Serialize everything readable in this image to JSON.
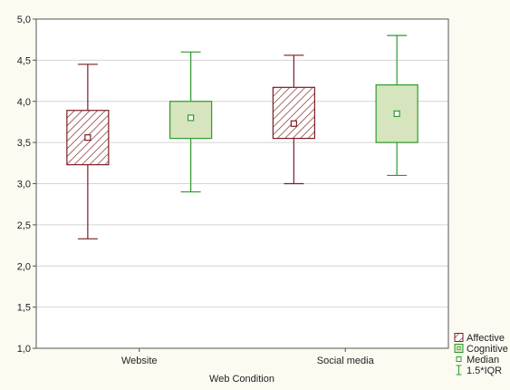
{
  "chart_data": {
    "type": "boxplot",
    "xlabel": "Web Condition",
    "ylabel": "",
    "ylim": [
      1.0,
      5.0
    ],
    "yticks": [
      "1,0",
      "1,5",
      "2,0",
      "2,5",
      "3,0",
      "3,5",
      "4,0",
      "4,5",
      "5,0"
    ],
    "grid": true,
    "legend_position": "bottom-right",
    "categories": [
      "Website",
      "Social media"
    ],
    "series": [
      {
        "name": "Affective",
        "color": "#7a1f24",
        "fill": "hatch",
        "boxes": [
          {
            "category": "Website",
            "whisker_low": 2.33,
            "q1": 3.23,
            "median": 3.56,
            "q3": 3.89,
            "whisker_high": 4.45
          },
          {
            "category": "Social media",
            "whisker_low": 3.0,
            "q1": 3.55,
            "median": 3.73,
            "q3": 4.17,
            "whisker_high": 4.56
          }
        ]
      },
      {
        "name": "Cognitive",
        "color": "#2e9a2e",
        "fill": "#d6e5bd",
        "boxes": [
          {
            "category": "Website",
            "whisker_low": 2.9,
            "q1": 3.55,
            "median": 3.8,
            "q3": 4.0,
            "whisker_high": 4.6
          },
          {
            "category": "Social media",
            "whisker_low": 3.1,
            "q1": 3.5,
            "median": 3.85,
            "q3": 4.2,
            "whisker_high": 4.8
          }
        ]
      }
    ],
    "legend": [
      {
        "label": "Affective",
        "symbol": "hatched-box",
        "color": "#7a1f24"
      },
      {
        "label": "Cognitive",
        "symbol": "filled-box",
        "color": "#2e9a2e"
      },
      {
        "label": "Median",
        "symbol": "small-square",
        "color": "#2e9a2e"
      },
      {
        "label": "1.5*IQR",
        "symbol": "whisker",
        "color": "#2e9a2e"
      }
    ]
  }
}
